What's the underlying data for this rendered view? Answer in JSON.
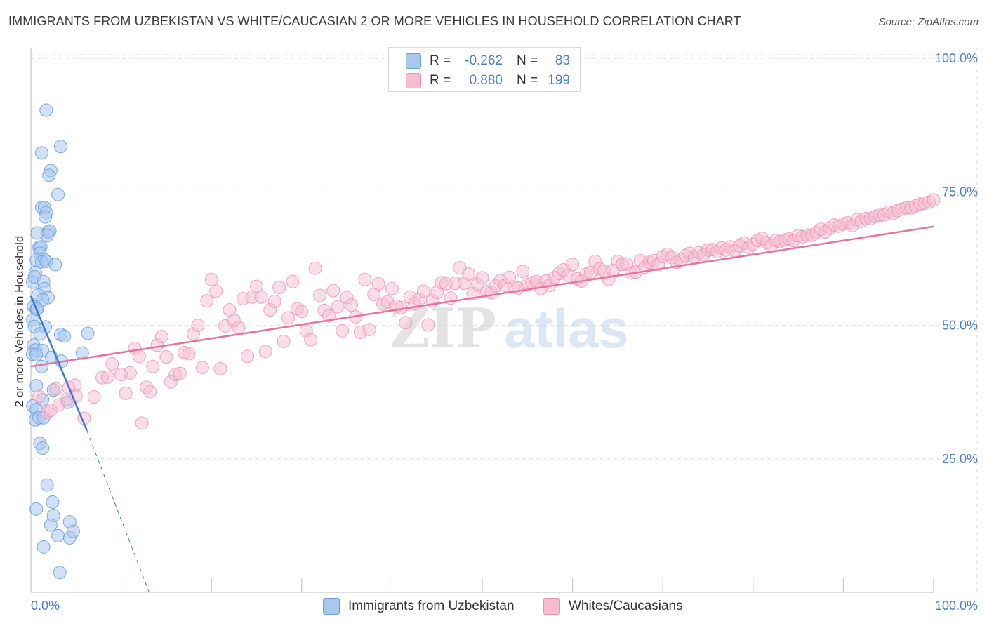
{
  "title": "IMMIGRANTS FROM UZBEKISTAN VS WHITE/CAUCASIAN 2 OR MORE VEHICLES IN HOUSEHOLD CORRELATION CHART",
  "source": "Source: ZipAtlas.com",
  "legend": {
    "series1": {
      "r_label": "R =",
      "r_value": "-0.262",
      "n_label": "N =",
      "n_value": "83"
    },
    "series2": {
      "r_label": "R =",
      "r_value": "0.880",
      "n_label": "N =",
      "n_value": "199"
    }
  },
  "bottom_legend": {
    "series1": "Immigrants from Uzbekistan",
    "series2": "Whites/Caucasians"
  },
  "watermark": {
    "zip": "ZIP",
    "atlas": "atlas"
  },
  "colors": {
    "blue_fill": "#a9c8f0",
    "blue_stroke": "#6a9ee0",
    "blue_line": "#3a75d0",
    "pink_fill": "#f6bcd0",
    "pink_stroke": "#ec8fb0",
    "pink_line": "#e8729a",
    "axis_text": "#4a7fd0",
    "grid": "#dddddd"
  },
  "chart_data": {
    "type": "scatter",
    "title": "IMMIGRANTS FROM UZBEKISTAN VS WHITE/CAUCASIAN 2 OR MORE VEHICLES IN HOUSEHOLD CORRELATION CHART",
    "xlabel": "",
    "ylabel": "2 or more Vehicles in Household",
    "xlim": [
      0,
      100
    ],
    "ylim": [
      0,
      102
    ],
    "x_tick_labels": [
      "0.0%",
      "100.0%"
    ],
    "y_ticks": [
      25,
      50,
      75,
      100
    ],
    "y_tick_labels": [
      "25.0%",
      "50.0%",
      "75.0%",
      "100.0%"
    ],
    "series": [
      {
        "name": "Immigrants from Uzbekistan",
        "r": -0.262,
        "n": 83,
        "points": [
          [
            1.7,
            90.3
          ],
          [
            3.3,
            83.5
          ],
          [
            1.2,
            82.3
          ],
          [
            2.2,
            79.0
          ],
          [
            2.0,
            78.1
          ],
          [
            3.0,
            74.5
          ],
          [
            1.2,
            72.1
          ],
          [
            1.5,
            72.1
          ],
          [
            1.7,
            71.1
          ],
          [
            1.6,
            70.3
          ],
          [
            1.9,
            67.5
          ],
          [
            2.1,
            67.7
          ],
          [
            1.8,
            66.8
          ],
          [
            0.7,
            67.3
          ],
          [
            0.9,
            64.6
          ],
          [
            1.1,
            64.7
          ],
          [
            1.0,
            63.5
          ],
          [
            1.5,
            62.3
          ],
          [
            0.6,
            62.2
          ],
          [
            1.2,
            61.9
          ],
          [
            1.7,
            62.0
          ],
          [
            2.7,
            61.4
          ],
          [
            0.5,
            59.9
          ],
          [
            0.2,
            58.1
          ],
          [
            0.4,
            59.1
          ],
          [
            1.4,
            58.2
          ],
          [
            1.5,
            56.9
          ],
          [
            0.8,
            55.7
          ],
          [
            1.9,
            55.2
          ],
          [
            1.3,
            54.8
          ],
          [
            0.3,
            53.5
          ],
          [
            0.6,
            53.0
          ],
          [
            0.7,
            53.1
          ],
          [
            0.2,
            51.0
          ],
          [
            0.4,
            49.8
          ],
          [
            1.6,
            49.7
          ],
          [
            1.0,
            48.4
          ],
          [
            3.3,
            48.3
          ],
          [
            3.7,
            48.0
          ],
          [
            6.3,
            48.5
          ],
          [
            0.3,
            46.3
          ],
          [
            0.5,
            45.4
          ],
          [
            1.3,
            45.3
          ],
          [
            0.2,
            44.6
          ],
          [
            0.6,
            44.5
          ],
          [
            2.3,
            44.0
          ],
          [
            5.7,
            44.8
          ],
          [
            3.4,
            43.3
          ],
          [
            1.2,
            42.3
          ],
          [
            0.6,
            38.7
          ],
          [
            2.5,
            37.9
          ],
          [
            1.3,
            36.1
          ],
          [
            4.1,
            35.6
          ],
          [
            0.2,
            34.9
          ],
          [
            0.6,
            34.2
          ],
          [
            0.5,
            32.3
          ],
          [
            0.9,
            32.7
          ],
          [
            1.4,
            32.7
          ],
          [
            1.0,
            27.9
          ],
          [
            1.3,
            27.0
          ],
          [
            1.8,
            20.1
          ],
          [
            0.6,
            15.6
          ],
          [
            2.4,
            16.9
          ],
          [
            2.5,
            14.4
          ],
          [
            2.2,
            12.6
          ],
          [
            4.3,
            13.2
          ],
          [
            3.0,
            10.6
          ],
          [
            4.3,
            10.2
          ],
          [
            4.7,
            11.4
          ],
          [
            1.4,
            8.5
          ],
          [
            3.2,
            3.7
          ]
        ]
      },
      {
        "name": "Whites/Caucasians",
        "r": 0.88,
        "n": 199,
        "points": [
          [
            0.9,
            36.7
          ],
          [
            1.8,
            33.7
          ],
          [
            2.2,
            34.1
          ],
          [
            2.8,
            38.1
          ],
          [
            3.1,
            35.1
          ],
          [
            4.0,
            36.1
          ],
          [
            4.2,
            38.3
          ],
          [
            4.9,
            38.8
          ],
          [
            5.0,
            36.8
          ],
          [
            5.9,
            32.6
          ],
          [
            7.0,
            36.6
          ],
          [
            7.9,
            40.2
          ],
          [
            8.5,
            40.3
          ],
          [
            9.0,
            42.8
          ],
          [
            10.0,
            40.8
          ],
          [
            10.5,
            37.3
          ],
          [
            11.0,
            41.1
          ],
          [
            11.5,
            45.7
          ],
          [
            12.0,
            44.2
          ],
          [
            12.3,
            31.7
          ],
          [
            12.8,
            38.4
          ],
          [
            13.2,
            37.6
          ],
          [
            13.5,
            42.3
          ],
          [
            14.0,
            46.3
          ],
          [
            14.5,
            47.9
          ],
          [
            15.0,
            44.1
          ],
          [
            15.5,
            39.4
          ],
          [
            16.0,
            40.8
          ],
          [
            16.5,
            41.0
          ],
          [
            17.0,
            44.9
          ],
          [
            17.5,
            44.7
          ],
          [
            18.0,
            48.4
          ],
          [
            18.5,
            50.0
          ],
          [
            19.0,
            42.1
          ],
          [
            19.5,
            54.6
          ],
          [
            20.0,
            58.6
          ],
          [
            20.5,
            56.4
          ],
          [
            21.0,
            41.9
          ],
          [
            21.5,
            49.9
          ],
          [
            22.0,
            52.9
          ],
          [
            22.5,
            50.9
          ],
          [
            23.0,
            49.6
          ],
          [
            23.5,
            55.0
          ],
          [
            24.0,
            44.2
          ],
          [
            24.5,
            55.3
          ],
          [
            25.0,
            57.3
          ],
          [
            25.5,
            55.3
          ],
          [
            26.0,
            45.1
          ],
          [
            26.5,
            52.9
          ],
          [
            27.0,
            54.5
          ],
          [
            27.5,
            57.1
          ],
          [
            28.0,
            47.0
          ],
          [
            28.5,
            51.4
          ],
          [
            29.0,
            58.2
          ],
          [
            29.5,
            53.1
          ],
          [
            30.0,
            52.6
          ],
          [
            30.5,
            49.0
          ],
          [
            31.0,
            47.3
          ],
          [
            31.5,
            60.7
          ],
          [
            32.0,
            55.6
          ],
          [
            32.5,
            52.8
          ],
          [
            33.0,
            51.8
          ],
          [
            33.5,
            56.5
          ],
          [
            34.0,
            53.5
          ],
          [
            34.5,
            49.0
          ],
          [
            35.0,
            55.2
          ],
          [
            35.5,
            53.8
          ],
          [
            36.0,
            51.6
          ],
          [
            36.5,
            48.7
          ],
          [
            37.0,
            58.6
          ],
          [
            37.5,
            49.2
          ],
          [
            38.0,
            55.8
          ],
          [
            38.5,
            57.8
          ],
          [
            39.0,
            54.0
          ],
          [
            39.5,
            54.4
          ],
          [
            40.0,
            56.9
          ],
          [
            40.5,
            53.6
          ],
          [
            41.0,
            53.3
          ],
          [
            41.5,
            50.5
          ],
          [
            42.0,
            55.3
          ],
          [
            42.5,
            54.1
          ],
          [
            43.0,
            54.8
          ],
          [
            43.5,
            56.4
          ],
          [
            44.0,
            50.1
          ],
          [
            44.5,
            54.6
          ],
          [
            45.0,
            56.2
          ],
          [
            45.5,
            58.0
          ],
          [
            46.0,
            57.8
          ],
          [
            46.5,
            55.1
          ],
          [
            47.0,
            57.9
          ],
          [
            47.5,
            60.8
          ],
          [
            48.0,
            57.9
          ],
          [
            48.5,
            59.6
          ],
          [
            49.0,
            56.0
          ],
          [
            49.5,
            57.7
          ],
          [
            50.0,
            58.9
          ],
          [
            50.5,
            56.3
          ],
          [
            51.0,
            56.1
          ],
          [
            51.5,
            57.4
          ],
          [
            52.0,
            58.4
          ],
          [
            52.5,
            57.5
          ],
          [
            53.0,
            59.0
          ],
          [
            53.5,
            57.2
          ],
          [
            54.0,
            57.0
          ],
          [
            54.5,
            60.1
          ],
          [
            55.0,
            57.6
          ],
          [
            55.5,
            58.0
          ],
          [
            56.0,
            58.2
          ],
          [
            56.5,
            56.9
          ],
          [
            57.0,
            58.3
          ],
          [
            57.5,
            57.5
          ],
          [
            58.0,
            59.0
          ],
          [
            58.5,
            59.7
          ],
          [
            59.0,
            60.4
          ],
          [
            59.5,
            59.4
          ],
          [
            60.0,
            61.4
          ],
          [
            60.5,
            58.7
          ],
          [
            61.0,
            58.3
          ],
          [
            61.5,
            59.6
          ],
          [
            62.0,
            59.9
          ],
          [
            62.5,
            62.0
          ],
          [
            63.0,
            60.6
          ],
          [
            63.5,
            60.2
          ],
          [
            64.0,
            58.6
          ],
          [
            64.5,
            60.3
          ],
          [
            65.0,
            62.0
          ],
          [
            65.5,
            61.4
          ],
          [
            66.0,
            61.5
          ],
          [
            66.5,
            59.8
          ],
          [
            67.0,
            60.0
          ],
          [
            67.5,
            62.1
          ],
          [
            68.0,
            60.9
          ],
          [
            68.5,
            61.8
          ],
          [
            69.0,
            62.1
          ],
          [
            69.5,
            61.4
          ],
          [
            70.0,
            62.9
          ],
          [
            70.5,
            63.3
          ],
          [
            71.0,
            62.7
          ],
          [
            71.5,
            61.8
          ],
          [
            72.0,
            62.3
          ],
          [
            72.5,
            63.1
          ],
          [
            73.0,
            63.5
          ],
          [
            73.5,
            62.8
          ],
          [
            74.0,
            63.6
          ],
          [
            74.5,
            63.2
          ],
          [
            75.0,
            64.1
          ],
          [
            75.5,
            64.2
          ],
          [
            76.0,
            63.8
          ],
          [
            76.5,
            64.5
          ],
          [
            77.0,
            64.1
          ],
          [
            77.5,
            64.7
          ],
          [
            78.0,
            64.0
          ],
          [
            78.5,
            64.9
          ],
          [
            79.0,
            65.4
          ],
          [
            79.5,
            64.6
          ],
          [
            80.0,
            65.2
          ],
          [
            80.5,
            65.9
          ],
          [
            81.0,
            66.3
          ],
          [
            81.5,
            65.5
          ],
          [
            82.0,
            64.9
          ],
          [
            82.5,
            65.9
          ],
          [
            83.0,
            65.7
          ],
          [
            83.5,
            66.0
          ],
          [
            84.0,
            66.2
          ],
          [
            84.5,
            65.9
          ],
          [
            85.0,
            66.8
          ],
          [
            85.5,
            66.6
          ],
          [
            86.0,
            66.9
          ],
          [
            86.5,
            66.9
          ],
          [
            87.0,
            67.4
          ],
          [
            87.5,
            68.0
          ],
          [
            88.0,
            67.5
          ],
          [
            88.5,
            68.2
          ],
          [
            89.0,
            68.8
          ],
          [
            89.5,
            68.6
          ],
          [
            90.0,
            69.0
          ],
          [
            90.5,
            69.2
          ],
          [
            91.0,
            68.7
          ],
          [
            91.5,
            69.8
          ],
          [
            92.0,
            69.5
          ],
          [
            92.5,
            70.0
          ],
          [
            93.0,
            70.0
          ],
          [
            93.5,
            70.4
          ],
          [
            94.0,
            70.6
          ],
          [
            94.5,
            70.7
          ],
          [
            95.0,
            71.2
          ],
          [
            95.5,
            71.0
          ],
          [
            96.0,
            71.5
          ],
          [
            96.5,
            71.8
          ],
          [
            97.0,
            72.0
          ],
          [
            97.5,
            72.0
          ],
          [
            98.0,
            72.4
          ],
          [
            98.5,
            72.7
          ],
          [
            99.0,
            72.9
          ],
          [
            99.5,
            73.1
          ],
          [
            100.0,
            73.5
          ]
        ]
      }
    ],
    "trendlines": [
      {
        "series": "Immigrants from Uzbekistan",
        "solid": [
          [
            0,
            55.5
          ],
          [
            6.2,
            30.3
          ]
        ],
        "dashed": [
          [
            6.2,
            30.3
          ],
          [
            13.1,
            0
          ]
        ]
      },
      {
        "series": "Whites/Caucasians",
        "solid": [
          [
            0,
            42.3
          ],
          [
            100,
            68.5
          ]
        ]
      }
    ],
    "grid": true
  }
}
